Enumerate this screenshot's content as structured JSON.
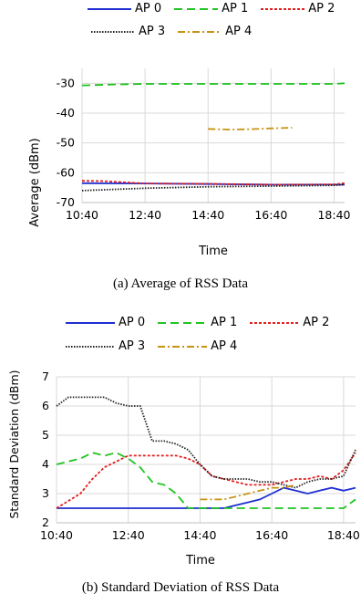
{
  "legend": [
    {
      "name": "AP 0",
      "color": "#1f2fd1",
      "dash": ""
    },
    {
      "name": "AP 1",
      "color": "#22c322",
      "dash": "9,5"
    },
    {
      "name": "AP 2",
      "color": "#e01f1f",
      "dash": "3,2"
    },
    {
      "name": "AP 3",
      "color": "#222222",
      "dash": "1.5,1.5"
    },
    {
      "name": "AP 4",
      "color": "#c89212",
      "dash": "8,3,2,3"
    }
  ],
  "chart_data": [
    {
      "type": "line",
      "ylabel": "Average (dBm)",
      "xlabel": "Time",
      "xticks": [
        "10:40",
        "12:40",
        "14:40",
        "16:40",
        "18:40"
      ],
      "xlim_hours": [
        10.667,
        19.0
      ],
      "ylim": [
        -70,
        -25
      ],
      "yticks": [
        -30,
        -40,
        -50,
        -60,
        -70
      ],
      "grid": true,
      "legend_position": "top",
      "series": [
        {
          "name": "AP 0",
          "x": [
            "10:40",
            "12:40",
            "14:40",
            "16:40",
            "18:40",
            "19:00"
          ],
          "values": [
            -63.5,
            -63.6,
            -63.8,
            -64.0,
            -64.0,
            -64.0
          ]
        },
        {
          "name": "AP 1",
          "x": [
            "10:40",
            "11:40",
            "12:40",
            "14:40",
            "16:40",
            "18:40",
            "19:00"
          ],
          "values": [
            -30.7,
            -30.4,
            -30.2,
            -30.2,
            -30.2,
            -30.2,
            -30.0
          ]
        },
        {
          "name": "AP 2",
          "x": [
            "10:40",
            "11:20",
            "12:40",
            "14:40",
            "16:40",
            "18:40",
            "19:00"
          ],
          "values": [
            -62.7,
            -62.8,
            -63.6,
            -63.7,
            -64.0,
            -63.9,
            -63.5
          ]
        },
        {
          "name": "AP 3",
          "x": [
            "10:40",
            "11:40",
            "12:40",
            "14:40",
            "16:40",
            "18:40",
            "19:00"
          ],
          "values": [
            -66.0,
            -65.6,
            -65.2,
            -64.7,
            -64.5,
            -64.2,
            -64.0
          ]
        },
        {
          "name": "AP 4",
          "x": [
            "14:40",
            "15:20",
            "16:00",
            "16:40",
            "17:20"
          ],
          "values": [
            -45.3,
            -45.5,
            -45.4,
            -45.1,
            -44.9
          ]
        }
      ]
    },
    {
      "type": "line",
      "ylabel": "Standard Deviation (dBm)",
      "xlabel": "Time",
      "xticks": [
        "10:40",
        "12:40",
        "14:40",
        "16:40",
        "18:40"
      ],
      "xlim_hours": [
        10.667,
        19.0
      ],
      "ylim": [
        2,
        7
      ],
      "yticks": [
        7,
        6,
        5,
        4,
        3,
        2
      ],
      "grid": true,
      "legend_position": "top",
      "series": [
        {
          "name": "AP 0",
          "x": [
            "10:40",
            "14:00",
            "14:40",
            "15:20",
            "16:00",
            "16:20",
            "16:40",
            "17:00",
            "17:20",
            "17:40",
            "18:00",
            "18:20",
            "18:40",
            "19:00"
          ],
          "values": [
            2.5,
            2.5,
            2.5,
            2.5,
            2.7,
            2.8,
            3.0,
            3.2,
            3.1,
            3.0,
            3.1,
            3.2,
            3.1,
            3.2
          ]
        },
        {
          "name": "AP 1",
          "x": [
            "10:40",
            "11:20",
            "11:40",
            "12:00",
            "12:20",
            "12:40",
            "13:00",
            "13:20",
            "13:40",
            "14:00",
            "14:20",
            "14:40",
            "15:00",
            "16:00",
            "17:00",
            "18:00",
            "18:40",
            "19:00"
          ],
          "values": [
            4.0,
            4.2,
            4.4,
            4.3,
            4.4,
            4.2,
            3.9,
            3.4,
            3.3,
            3.0,
            2.5,
            2.5,
            2.5,
            2.5,
            2.5,
            2.5,
            2.5,
            2.8
          ]
        },
        {
          "name": "AP 2",
          "x": [
            "10:40",
            "11:20",
            "11:40",
            "12:00",
            "12:40",
            "13:00",
            "13:40",
            "14:00",
            "14:20",
            "14:40",
            "15:00",
            "15:40",
            "16:00",
            "16:40",
            "17:00",
            "17:20",
            "17:40",
            "18:00",
            "18:20",
            "18:40",
            "19:00"
          ],
          "values": [
            2.5,
            3.0,
            3.5,
            3.9,
            4.3,
            4.3,
            4.3,
            4.3,
            4.2,
            4.0,
            3.6,
            3.4,
            3.3,
            3.3,
            3.4,
            3.5,
            3.5,
            3.6,
            3.5,
            3.8,
            4.4
          ]
        },
        {
          "name": "AP 3",
          "x": [
            "10:40",
            "11:00",
            "11:40",
            "12:00",
            "12:20",
            "12:40",
            "13:00",
            "13:20",
            "13:40",
            "14:00",
            "14:20",
            "14:40",
            "15:00",
            "15:20",
            "15:40",
            "16:00",
            "16:20",
            "16:40",
            "17:00",
            "17:20",
            "17:40",
            "18:00",
            "18:20",
            "18:40",
            "19:00"
          ],
          "values": [
            6.0,
            6.3,
            6.3,
            6.3,
            6.1,
            6.0,
            6.0,
            4.8,
            4.8,
            4.7,
            4.5,
            4.0,
            3.6,
            3.5,
            3.5,
            3.5,
            3.4,
            3.4,
            3.3,
            3.2,
            3.4,
            3.5,
            3.5,
            3.6,
            4.5
          ]
        },
        {
          "name": "AP 4",
          "x": [
            "14:40",
            "15:00",
            "15:20",
            "15:40",
            "16:00",
            "16:20",
            "16:40",
            "17:00",
            "17:20"
          ],
          "values": [
            2.8,
            2.8,
            2.8,
            2.9,
            3.0,
            3.1,
            3.2,
            3.2,
            3.3
          ]
        }
      ]
    }
  ],
  "captions": {
    "a": "(a)  Average  of  RSS  Data",
    "b": "(b)  Standard  Deviation  of  RSS  Data"
  }
}
